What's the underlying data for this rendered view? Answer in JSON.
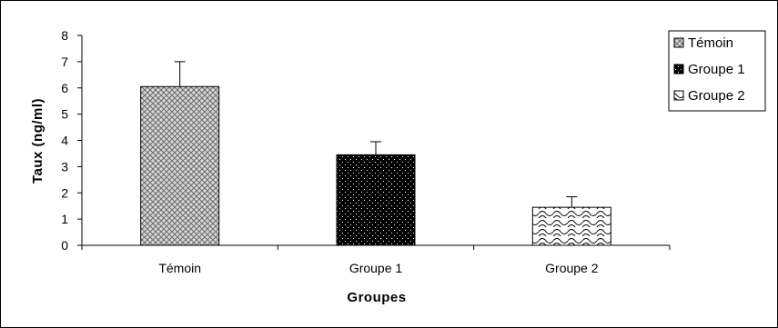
{
  "chart_data": {
    "type": "bar",
    "xlabel": "Groupes",
    "ylabel": "Taux (ng/ml)",
    "ylim": [
      0,
      8
    ],
    "y_ticks": [
      0,
      1,
      2,
      3,
      4,
      5,
      6,
      7,
      8
    ],
    "categories": [
      "Témoin",
      "Groupe 1",
      "Groupe 2"
    ],
    "values": [
      6.05,
      3.45,
      1.45
    ],
    "error_plus": [
      0.95,
      0.5,
      0.4
    ],
    "patterns": [
      "crosshatch-gray",
      "dotted-black",
      "wave-white"
    ],
    "grid": false,
    "legend": {
      "placement": "top-right",
      "entries": [
        "Témoin",
        "Groupe 1",
        "Groupe 2"
      ]
    }
  }
}
